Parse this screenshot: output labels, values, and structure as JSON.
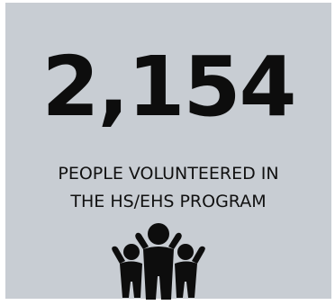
{
  "stat": {
    "value": "2,154",
    "caption_line1": "PEOPLE VOLUNTEERED IN",
    "caption_line2": "THE HS/EHS PROGRAM"
  },
  "icon": {
    "name": "people-cheering-icon",
    "color": "#0d0d0d"
  },
  "colors": {
    "card_background": "#c8cdd3",
    "text": "#0d0d0d"
  }
}
